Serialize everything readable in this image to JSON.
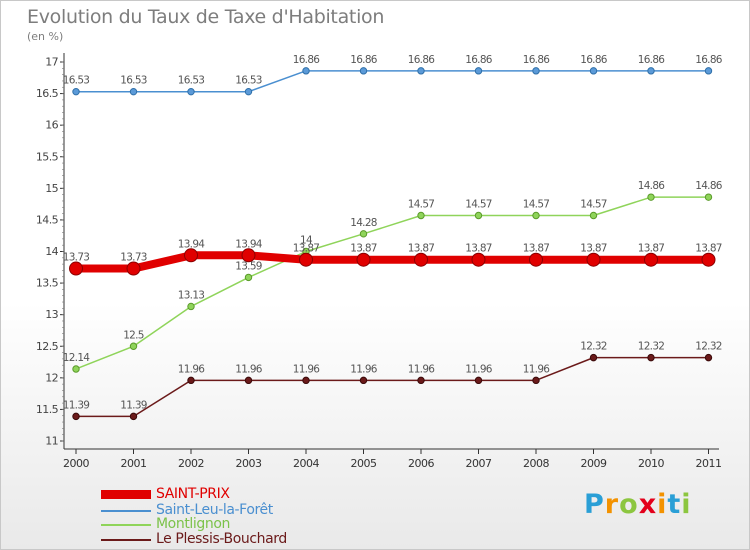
{
  "title": "Evolution du Taux de Taxe d'Habitation",
  "unit": "(en %)",
  "logo": {
    "letters": [
      "P",
      "r",
      "o",
      "x",
      "i",
      "t",
      "i"
    ],
    "colors": [
      "#2a9fd6",
      "#f39200",
      "#8cc63f",
      "#e3001b",
      "#f39200",
      "#2a9fd6",
      "#8cc63f"
    ]
  },
  "chart_data": {
    "type": "line",
    "title": "Evolution du Taux de Taxe d'Habitation",
    "ylabel": "(en %)",
    "x": [
      "2000",
      "2001",
      "2002",
      "2003",
      "2004",
      "2005",
      "2006",
      "2007",
      "2008",
      "2009",
      "2010",
      "2011"
    ],
    "ylim": [
      11,
      17
    ],
    "yticks": [
      "11",
      "11.5",
      "12",
      "12.5",
      "13",
      "13.5",
      "14",
      "14.5",
      "15",
      "15.5",
      "16",
      "16.5",
      "17"
    ],
    "grid": false,
    "legend_position": "bottom-left",
    "series": [
      {
        "name": "SAINT-PRIX",
        "color": "#e00000",
        "values": [
          13.73,
          13.73,
          13.94,
          13.94,
          13.87,
          13.87,
          13.87,
          13.87,
          13.87,
          13.87,
          13.87,
          13.87
        ],
        "labels": [
          "13.73",
          "13.73",
          "13.94",
          "13.94",
          "13.87",
          "13.87",
          "13.87",
          "13.87",
          "13.87",
          "13.87",
          "13.87",
          "13.87"
        ]
      },
      {
        "name": "Saint-Leu-la-Forêt",
        "color": "#4a8fd0",
        "values": [
          16.53,
          16.53,
          16.53,
          16.53,
          16.86,
          16.86,
          16.86,
          16.86,
          16.86,
          16.86,
          16.86,
          16.86
        ],
        "labels": [
          "16.53",
          "16.53",
          "16.53",
          "16.53",
          "16.86",
          "16.86",
          "16.86",
          "16.86",
          "16.86",
          "16.86",
          "16.86",
          "16.86"
        ]
      },
      {
        "name": "Montlignon",
        "color": "#8fd45a",
        "values": [
          12.14,
          12.5,
          13.13,
          13.59,
          14.0,
          14.28,
          14.57,
          14.57,
          14.57,
          14.57,
          14.86,
          14.86
        ],
        "labels": [
          "12.14",
          "12.5",
          "13.13",
          "13.59",
          "14",
          "14.28",
          "14.57",
          "14.57",
          "14.57",
          "14.57",
          "14.86",
          "14.86"
        ]
      },
      {
        "name": "Le Plessis-Bouchard",
        "color": "#6b1a1a",
        "values": [
          11.39,
          11.39,
          11.96,
          11.96,
          11.96,
          11.96,
          11.96,
          11.96,
          11.96,
          12.32,
          12.32,
          12.32
        ],
        "labels": [
          "11.39",
          "11.39",
          "11.96",
          "11.96",
          "11.96",
          "11.96",
          "11.96",
          "11.96",
          "11.96",
          "12.32",
          "12.32",
          "12.32"
        ]
      }
    ]
  }
}
